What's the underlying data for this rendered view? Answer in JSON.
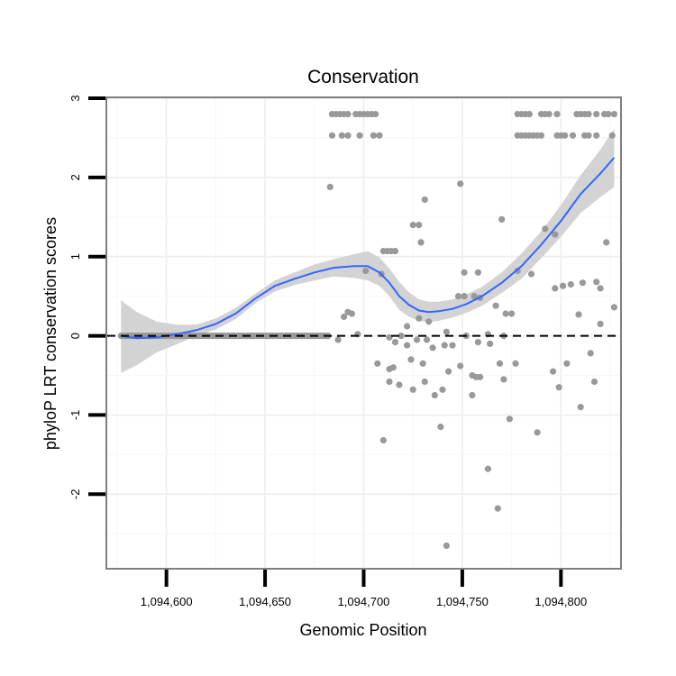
{
  "chart_data": {
    "type": "scatter",
    "title": "Conservation",
    "xlabel": "Genomic Position",
    "ylabel": "phyloP LRT conservation scores",
    "xlim": [
      1094570,
      1094830
    ],
    "ylim": [
      -2.93,
      3.0
    ],
    "x_ticks": [
      1094600,
      1094650,
      1094700,
      1094750,
      1094800
    ],
    "x_tick_labels": [
      "1,094,600",
      "1,094,650",
      "1,094,700",
      "1,094,750",
      "1,094,800"
    ],
    "y_ticks": [
      3,
      2,
      1,
      0,
      -1,
      -2
    ],
    "y_tick_labels": [
      "3",
      "2",
      "1",
      "0",
      "-1",
      "-2"
    ],
    "hline": {
      "y": 0,
      "style": "dashed",
      "color": "#000000"
    },
    "points_color": "#999999",
    "smooth_color": "#3366ff",
    "ribbon_color": "#d3d3d3",
    "points": [
      [
        1094684,
        2.8
      ],
      [
        1094686,
        2.8
      ],
      [
        1094688,
        2.8
      ],
      [
        1094690,
        2.8
      ],
      [
        1094692,
        2.8
      ],
      [
        1094696,
        2.8
      ],
      [
        1094698,
        2.8
      ],
      [
        1094700,
        2.8
      ],
      [
        1094702,
        2.8
      ],
      [
        1094704,
        2.8
      ],
      [
        1094706,
        2.8
      ],
      [
        1094684,
        2.53
      ],
      [
        1094689,
        2.53
      ],
      [
        1094692,
        2.53
      ],
      [
        1094698,
        2.53
      ],
      [
        1094705,
        2.53
      ],
      [
        1094708,
        2.53
      ],
      [
        1094778,
        2.8
      ],
      [
        1094780,
        2.8
      ],
      [
        1094782,
        2.8
      ],
      [
        1094784,
        2.8
      ],
      [
        1094790,
        2.8
      ],
      [
        1094792,
        2.8
      ],
      [
        1094794,
        2.8
      ],
      [
        1094798,
        2.8
      ],
      [
        1094808,
        2.8
      ],
      [
        1094810,
        2.8
      ],
      [
        1094812,
        2.8
      ],
      [
        1094814,
        2.8
      ],
      [
        1094818,
        2.8
      ],
      [
        1094822,
        2.8
      ],
      [
        1094824,
        2.8
      ],
      [
        1094827,
        2.8
      ],
      [
        1094778,
        2.53
      ],
      [
        1094780,
        2.53
      ],
      [
        1094782,
        2.53
      ],
      [
        1094784,
        2.53
      ],
      [
        1094786,
        2.53
      ],
      [
        1094788,
        2.53
      ],
      [
        1094790,
        2.53
      ],
      [
        1094798,
        2.53
      ],
      [
        1094800,
        2.53
      ],
      [
        1094802,
        2.53
      ],
      [
        1094806,
        2.53
      ],
      [
        1094812,
        2.53
      ],
      [
        1094814,
        2.53
      ],
      [
        1094818,
        2.53
      ],
      [
        1094826,
        2.53
      ],
      [
        1094683,
        1.88
      ],
      [
        1094749,
        1.92
      ],
      [
        1094731,
        1.72
      ],
      [
        1094770,
        1.47
      ],
      [
        1094725,
        1.4
      ],
      [
        1094728,
        1.4
      ],
      [
        1094792,
        1.35
      ],
      [
        1094797,
        1.28
      ],
      [
        1094729,
        1.18
      ],
      [
        1094823,
        1.18
      ],
      [
        1094710,
        1.07
      ],
      [
        1094712,
        1.07
      ],
      [
        1094714,
        1.07
      ],
      [
        1094716,
        1.07
      ],
      [
        1094701,
        0.82
      ],
      [
        1094709,
        0.78
      ],
      [
        1094751,
        0.8
      ],
      [
        1094758,
        0.8
      ],
      [
        1094778,
        0.82
      ],
      [
        1094785,
        0.78
      ],
      [
        1094818,
        0.68
      ],
      [
        1094820,
        0.6
      ],
      [
        1094811,
        0.67
      ],
      [
        1094805,
        0.65
      ],
      [
        1094801,
        0.63
      ],
      [
        1094797,
        0.6
      ],
      [
        1094748,
        0.5
      ],
      [
        1094751,
        0.5
      ],
      [
        1094756,
        0.5
      ],
      [
        1094759,
        0.48
      ],
      [
        1094767,
        0.38
      ],
      [
        1094690,
        0.24
      ],
      [
        1094692,
        0.3
      ],
      [
        1094694,
        0.28
      ],
      [
        1094722,
        0.12
      ],
      [
        1094728,
        0.22
      ],
      [
        1094733,
        0.18
      ],
      [
        1094772,
        0.28
      ],
      [
        1094775,
        0.28
      ],
      [
        1094809,
        0.27
      ],
      [
        1094820,
        0.15
      ],
      [
        1094827,
        0.36
      ],
      [
        1094687,
        -0.05
      ],
      [
        1094697,
        0.02
      ],
      [
        1094713,
        -0.02
      ],
      [
        1094719,
        0.0
      ],
      [
        1094727,
        -0.05
      ],
      [
        1094732,
        -0.05
      ],
      [
        1094742,
        0.05
      ],
      [
        1094752,
        0.0
      ],
      [
        1094763,
        0.02
      ],
      [
        1094771,
        0.0
      ],
      [
        1094716,
        -0.08
      ],
      [
        1094722,
        -0.12
      ],
      [
        1094735,
        -0.15
      ],
      [
        1094741,
        -0.12
      ],
      [
        1094745,
        -0.12
      ],
      [
        1094758,
        -0.08
      ],
      [
        1094764,
        -0.1
      ],
      [
        1094707,
        -0.35
      ],
      [
        1094713,
        -0.42
      ],
      [
        1094715,
        -0.4
      ],
      [
        1094724,
        -0.3
      ],
      [
        1094730,
        -0.35
      ],
      [
        1094743,
        -0.45
      ],
      [
        1094749,
        -0.38
      ],
      [
        1094755,
        -0.5
      ],
      [
        1094757,
        -0.52
      ],
      [
        1094759,
        -0.52
      ],
      [
        1094769,
        -0.35
      ],
      [
        1094771,
        -0.55
      ],
      [
        1094777,
        -0.35
      ],
      [
        1094796,
        -0.45
      ],
      [
        1094803,
        -0.35
      ],
      [
        1094815,
        -0.22
      ],
      [
        1094713,
        -0.58
      ],
      [
        1094718,
        -0.62
      ],
      [
        1094725,
        -0.68
      ],
      [
        1094731,
        -0.58
      ],
      [
        1094736,
        -0.75
      ],
      [
        1094740,
        -0.68
      ],
      [
        1094755,
        -0.75
      ],
      [
        1094799,
        -0.65
      ],
      [
        1094810,
        -0.9
      ],
      [
        1094817,
        -0.58
      ],
      [
        1094739,
        -1.15
      ],
      [
        1094774,
        -1.05
      ],
      [
        1094788,
        -1.22
      ],
      [
        1094710,
        -1.32
      ],
      [
        1094763,
        -1.68
      ],
      [
        1094768,
        -2.18
      ],
      [
        1094742,
        -2.65
      ]
    ],
    "zero_points_range": [
      1094577,
      1094682
    ],
    "smooth_line": {
      "x": [
        1094577,
        1094585,
        1094595,
        1094605,
        1094615,
        1094625,
        1094635,
        1094645,
        1094655,
        1094665,
        1094675,
        1094685,
        1094695,
        1094702,
        1094708,
        1094713,
        1094718,
        1094723,
        1094728,
        1094733,
        1094738,
        1094745,
        1094752,
        1094760,
        1094770,
        1094780,
        1094790,
        1094800,
        1094810,
        1094820,
        1094827
      ],
      "y": [
        0.0,
        -0.03,
        -0.02,
        0.02,
        0.07,
        0.15,
        0.28,
        0.47,
        0.63,
        0.72,
        0.8,
        0.86,
        0.88,
        0.88,
        0.8,
        0.67,
        0.5,
        0.39,
        0.32,
        0.3,
        0.31,
        0.34,
        0.4,
        0.5,
        0.67,
        0.88,
        1.15,
        1.45,
        1.79,
        2.05,
        2.25
      ]
    },
    "ribbon_upper": [
      0.45,
      0.3,
      0.18,
      0.14,
      0.14,
      0.22,
      0.35,
      0.53,
      0.7,
      0.8,
      0.9,
      0.97,
      1.03,
      1.07,
      0.99,
      0.85,
      0.68,
      0.55,
      0.46,
      0.43,
      0.43,
      0.46,
      0.52,
      0.62,
      0.8,
      1.04,
      1.32,
      1.65,
      2.03,
      2.35,
      2.62
    ],
    "ribbon_lower": [
      -0.47,
      -0.37,
      -0.21,
      -0.11,
      0.0,
      0.08,
      0.21,
      0.41,
      0.56,
      0.64,
      0.7,
      0.75,
      0.73,
      0.7,
      0.63,
      0.5,
      0.33,
      0.24,
      0.19,
      0.17,
      0.19,
      0.23,
      0.29,
      0.38,
      0.54,
      0.72,
      0.98,
      1.25,
      1.55,
      1.75,
      1.88
    ]
  }
}
